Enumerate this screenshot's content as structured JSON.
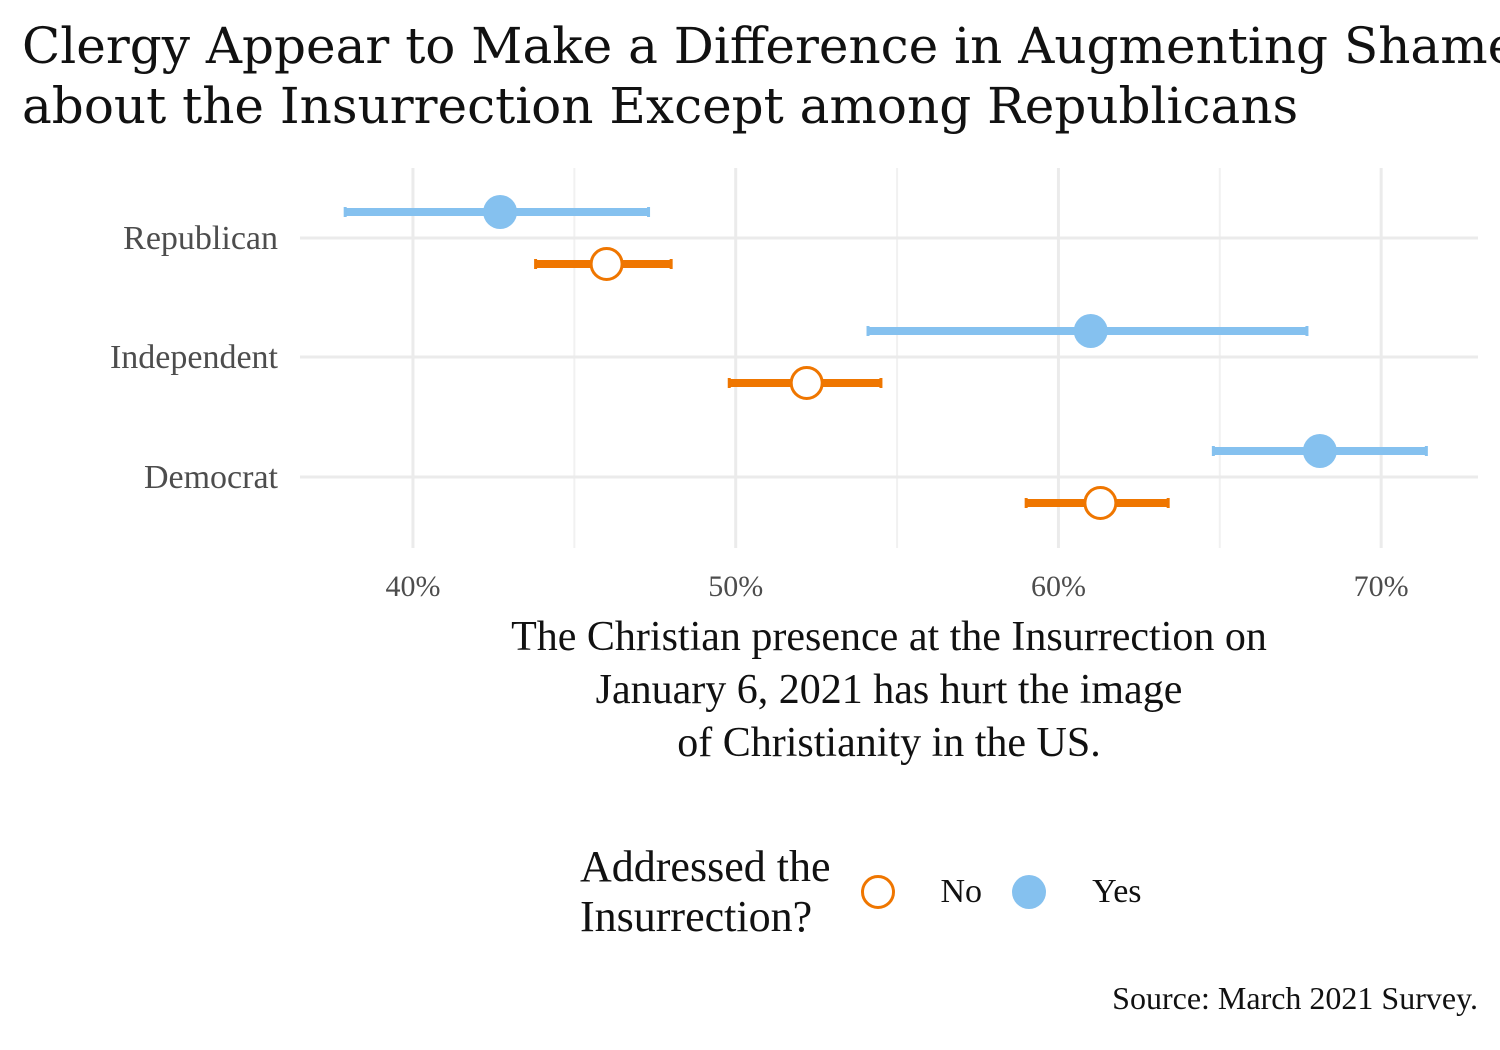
{
  "title": {
    "line1": "Clergy Appear to Make a Difference in Augmenting Shame",
    "line2": "about the Insurrection Except among Republicans"
  },
  "chart_data": {
    "type": "dot-interval",
    "categories": [
      "Republican",
      "Independent",
      "Democrat"
    ],
    "xlabel_lines": [
      "The Christian presence at the Insurrection on",
      "January 6, 2021 has hurt the image",
      "of Christianity in the US."
    ],
    "x_ticks": [
      40,
      50,
      60,
      70
    ],
    "x_tick_labels": [
      "40%",
      "50%",
      "60%",
      "70%"
    ],
    "xlim": [
      36.5,
      73
    ],
    "series": [
      {
        "name": "Yes",
        "color": "#85c1ef",
        "filled": true,
        "values": [
          42.7,
          61.0,
          68.1
        ],
        "lower": [
          37.9,
          54.1,
          64.8
        ],
        "upper": [
          47.3,
          67.7,
          71.4
        ]
      },
      {
        "name": "No",
        "color": "#ef7600",
        "filled": false,
        "values": [
          46.0,
          52.2,
          61.3
        ],
        "lower": [
          43.8,
          49.8,
          59.0
        ],
        "upper": [
          48.0,
          54.5,
          63.4
        ]
      }
    ]
  },
  "legend": {
    "title_line1": "Addressed the",
    "title_line2": "Insurrection?",
    "items": [
      {
        "label": "No",
        "color": "#ef7600",
        "filled": false
      },
      {
        "label": "Yes",
        "color": "#85c1ef",
        "filled": true
      }
    ]
  },
  "source": "Source: March 2021 Survey."
}
